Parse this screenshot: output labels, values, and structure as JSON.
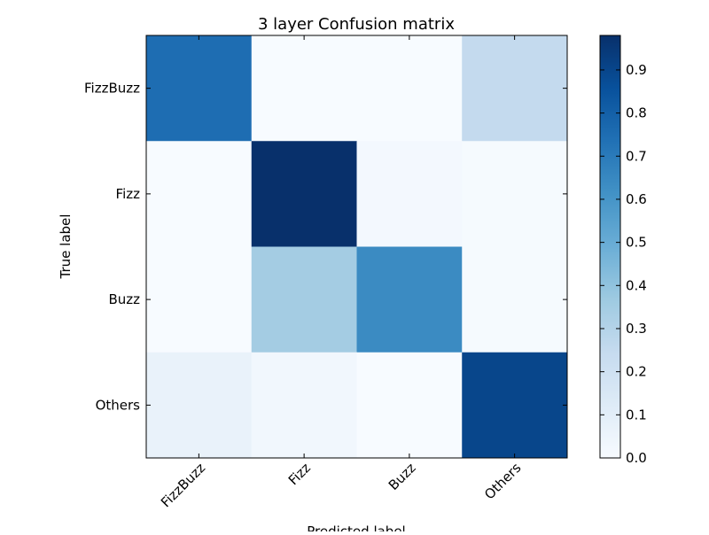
{
  "chart_data": {
    "type": "heatmap",
    "title": "3 layer Confusion matrix",
    "xlabel": "Predicted label",
    "ylabel": "True label",
    "x_categories": [
      "FizzBuzz",
      "Fizz",
      "Buzz",
      "Others"
    ],
    "y_categories": [
      "FizzBuzz",
      "Fizz",
      "Buzz",
      "Others"
    ],
    "values": [
      [
        0.75,
        0.0,
        0.0,
        0.25
      ],
      [
        0.0,
        0.98,
        0.02,
        0.01
      ],
      [
        0.0,
        0.35,
        0.64,
        0.01
      ],
      [
        0.07,
        0.03,
        0.0,
        0.9
      ]
    ],
    "colormap": "Blues",
    "colorbar": {
      "range": [
        0.0,
        0.98
      ],
      "ticks": [
        "0.0",
        "0.1",
        "0.2",
        "0.3",
        "0.4",
        "0.5",
        "0.6",
        "0.7",
        "0.8",
        "0.9"
      ]
    },
    "grid": false
  }
}
